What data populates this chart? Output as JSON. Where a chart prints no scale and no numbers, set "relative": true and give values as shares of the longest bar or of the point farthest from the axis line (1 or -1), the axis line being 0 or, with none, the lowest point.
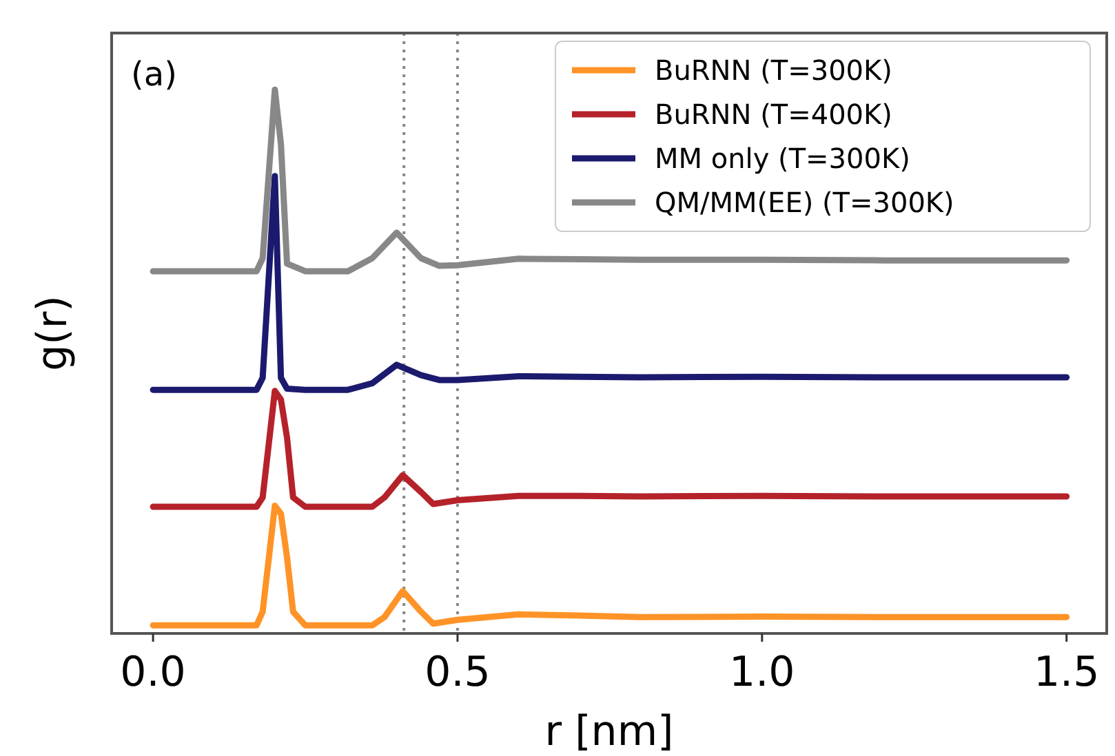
{
  "chart_data": {
    "type": "line",
    "relative": true,
    "xlabel": "r [nm]",
    "ylabel": "g(r)",
    "annotations": [
      "(a)"
    ],
    "xlim": [
      -0.068,
      1.566
    ],
    "xticks": [
      {
        "value": 0,
        "label": "0.0"
      },
      {
        "value": 0.5,
        "label": "0.5"
      },
      {
        "value": 1,
        "label": "1.0"
      },
      {
        "value": 1.5,
        "label": "1.5"
      }
    ],
    "tick_labels": "x",
    "legend": "top right",
    "grid": false,
    "marker": "none",
    "line_style": "solid",
    "ref_lines": [
      {
        "axis": "x",
        "value": 0.412,
        "color": "#888888",
        "line_style": "dotted"
      },
      {
        "axis": "x",
        "value": 0.5,
        "color": "#888888",
        "line_style": "dotted"
      }
    ],
    "series": [
      {
        "name": "BuRNN (T=300K)",
        "color": "#ff9327",
        "x": [
          0,
          0.17,
          0.18,
          0.2,
          0.21,
          0.22,
          0.23,
          0.25,
          0.36,
          0.38,
          0.41,
          0.44,
          0.46,
          0.5,
          0.6,
          0.7,
          0.8,
          1.0,
          1.2,
          1.5
        ],
        "values": [
          0.015,
          0.015,
          0.04,
          0.235,
          0.22,
          0.14,
          0.04,
          0.015,
          0.015,
          0.03,
          0.078,
          0.04,
          0.018,
          0.025,
          0.035,
          0.033,
          0.03,
          0.031,
          0.03,
          0.03
        ]
      },
      {
        "name": "BuRNN (T=400K)",
        "color": "#b5222a",
        "x": [
          0,
          0.17,
          0.18,
          0.2,
          0.21,
          0.22,
          0.23,
          0.25,
          0.36,
          0.38,
          0.41,
          0.44,
          0.46,
          0.5,
          0.6,
          0.7,
          0.8,
          1.0,
          1.2,
          1.5
        ],
        "values": [
          0.233,
          0.233,
          0.25,
          0.446,
          0.43,
          0.36,
          0.25,
          0.233,
          0.233,
          0.25,
          0.291,
          0.26,
          0.238,
          0.245,
          0.253,
          0.253,
          0.252,
          0.253,
          0.252,
          0.252
        ]
      },
      {
        "name": "MM only (T=300K)",
        "color": "#1c1a6e",
        "x": [
          0,
          0.17,
          0.18,
          0.2,
          0.21,
          0.22,
          0.25,
          0.32,
          0.36,
          0.4,
          0.44,
          0.47,
          0.5,
          0.6,
          0.7,
          0.8,
          1.0,
          1.2,
          1.5
        ],
        "values": [
          0.448,
          0.448,
          0.47,
          0.841,
          0.47,
          0.45,
          0.448,
          0.448,
          0.46,
          0.494,
          0.475,
          0.466,
          0.466,
          0.473,
          0.472,
          0.471,
          0.472,
          0.471,
          0.471
        ]
      },
      {
        "name": "QM/MM(EE) (T=300K)",
        "color": "#888888",
        "x": [
          0,
          0.17,
          0.18,
          0.2,
          0.21,
          0.22,
          0.25,
          0.32,
          0.36,
          0.4,
          0.44,
          0.47,
          0.5,
          0.6,
          0.7,
          0.8,
          1.0,
          1.2,
          1.5
        ],
        "values": [
          0.666,
          0.666,
          0.69,
          1.0,
          0.9,
          0.68,
          0.666,
          0.666,
          0.69,
          0.737,
          0.69,
          0.676,
          0.677,
          0.689,
          0.688,
          0.687,
          0.687,
          0.686,
          0.686
        ]
      }
    ]
  }
}
